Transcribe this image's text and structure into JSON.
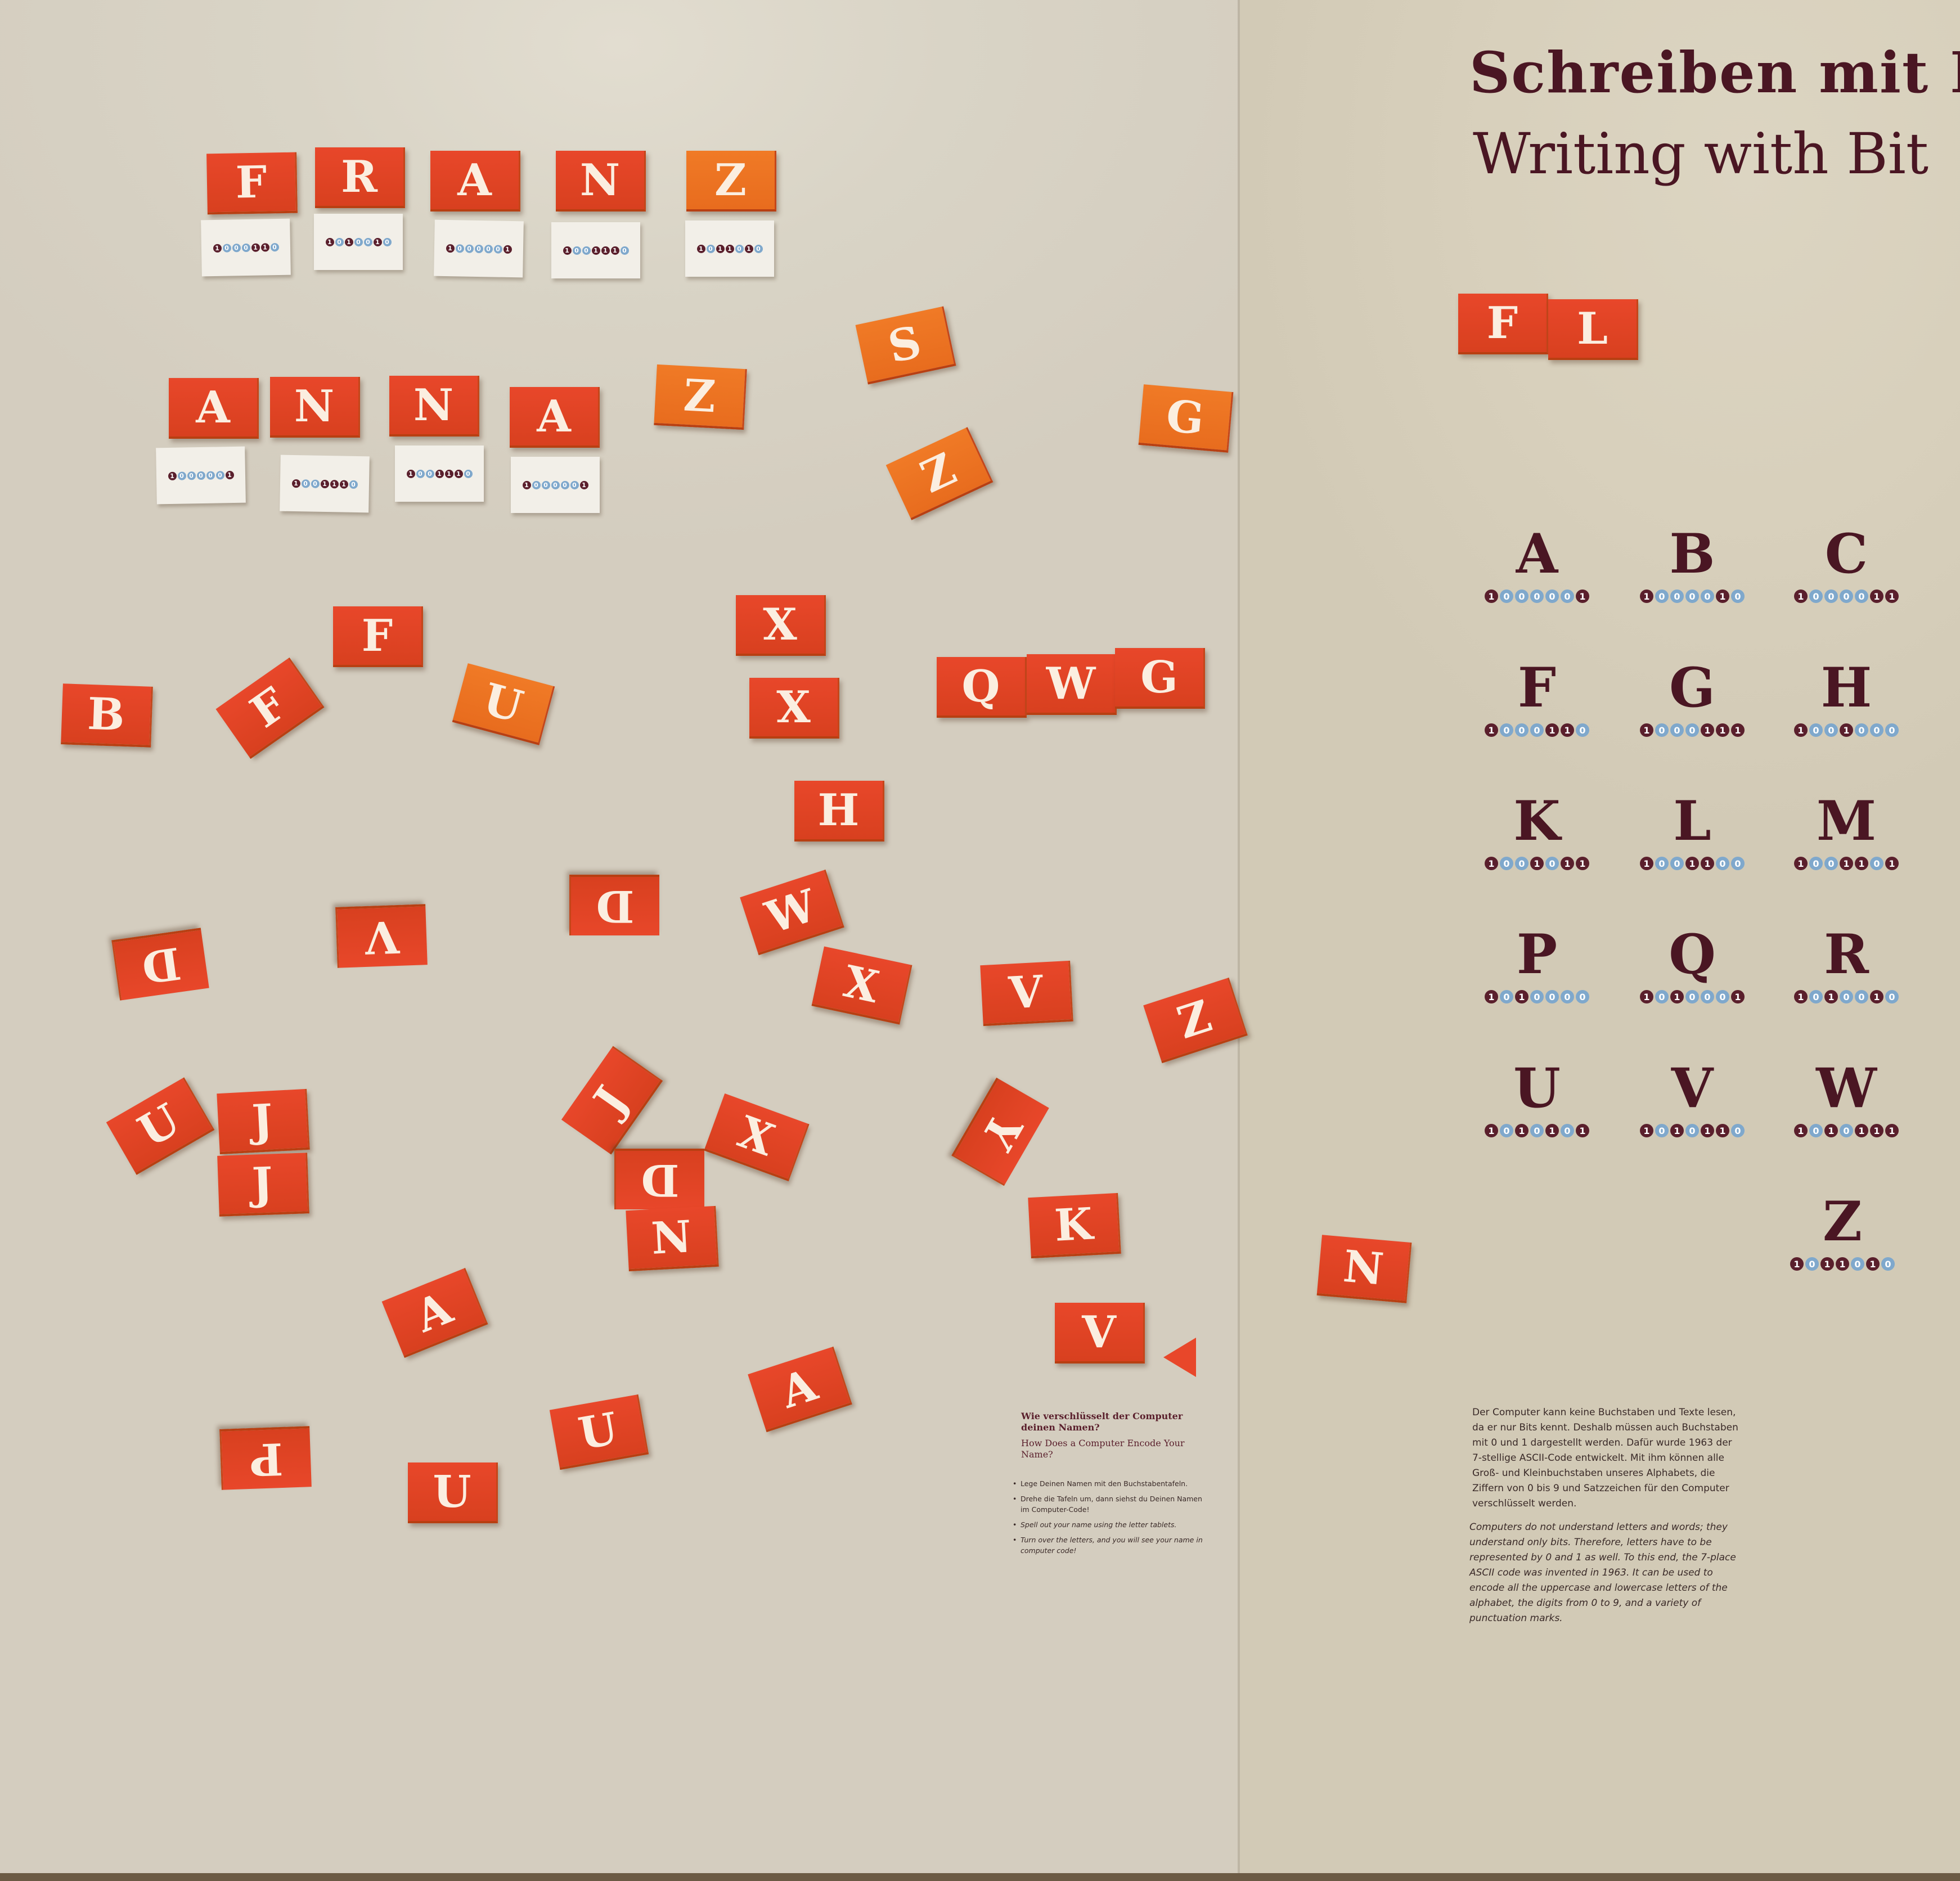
{
  "title_de": "Schreiben mit B",
  "title_en": "Writing with Bit",
  "name_rows": [
    {
      "name": "FRANZ",
      "letters": [
        {
          "char": "F",
          "bits": "1000110"
        },
        {
          "char": "R",
          "bits": "1010010"
        },
        {
          "char": "A",
          "bits": "1000001"
        },
        {
          "char": "N",
          "bits": "1001110"
        },
        {
          "char": "Z",
          "bits": "1011010"
        }
      ]
    },
    {
      "name": "ANNA",
      "letters": [
        {
          "char": "A",
          "bits": "1000001"
        },
        {
          "char": "N",
          "bits": "1001110"
        },
        {
          "char": "N",
          "bits": "1001110"
        },
        {
          "char": "A",
          "bits": "1000001"
        }
      ]
    }
  ],
  "loose_tiles": [
    "Z",
    "S",
    "Z",
    "G",
    "F",
    "B",
    "F",
    "U",
    "X",
    "X",
    "Q",
    "W",
    "G",
    "H",
    "D",
    "V",
    "D",
    "W",
    "X",
    "V",
    "Z",
    "U",
    "J",
    "J",
    "J",
    "X",
    "Y",
    "D",
    "N",
    "K",
    "N",
    "A",
    "V",
    "A",
    "U",
    "P",
    "U"
  ],
  "right_tiles": [
    "F",
    "L"
  ],
  "alphabet": [
    {
      "char": "A",
      "bits": "1000001"
    },
    {
      "char": "B",
      "bits": "1000010"
    },
    {
      "char": "C",
      "bits": "1000011"
    },
    {
      "char": "F",
      "bits": "1000110"
    },
    {
      "char": "G",
      "bits": "1000111"
    },
    {
      "char": "H",
      "bits": "1001000"
    },
    {
      "char": "K",
      "bits": "1001011"
    },
    {
      "char": "L",
      "bits": "1001100"
    },
    {
      "char": "M",
      "bits": "1001101"
    },
    {
      "char": "P",
      "bits": "1010000"
    },
    {
      "char": "Q",
      "bits": "1010001"
    },
    {
      "char": "R",
      "bits": "1010010"
    },
    {
      "char": "U",
      "bits": "1010101"
    },
    {
      "char": "V",
      "bits": "1010110"
    },
    {
      "char": "W",
      "bits": "1010111"
    },
    {
      "char": "Z",
      "bits": "1011010"
    }
  ],
  "info": {
    "title": "Wie verschlüsselt der Computer deinen Namen?",
    "subtitle": "How Does a Computer Encode Your Name?",
    "steps": [
      "Lege Deinen Namen mit den Buchstabentafeln.",
      "Drehe die Tafeln um, dann siehst du Deinen Namen im Computer-Code!",
      "Spell out your name using the letter tablets.",
      "Turn over the letters, and you will see your name in computer code!"
    ]
  },
  "body_de": "Der Computer kann keine Buchstaben und Texte lesen, da er nur Bits kennt. Deshalb müssen auch Buchstaben mit 0 und 1 dargestellt werden. Dafür wurde 1963 der 7-stellige ASCII-Code entwickelt. Mit ihm können alle Groß- und Kleinbuchstaben unseres Alphabets, die Ziffern von 0 bis 9 und Satzzeichen für den Computer verschlüsselt werden.",
  "body_en": "Computers do not understand letters and words; they understand only bits. Therefore, letters have to be represented by 0 and 1 as well. To this end, the 7-place ASCII code was invented in 1963. It can be used to encode all the uppercase and lowercase letters of the alphabet, the digits from 0 to 9, and a variety of punctuation marks.",
  "colors": {
    "tile": "#e4501c",
    "maroon": "#4a1623",
    "bit_one": "#5a1f2c",
    "bit_zero": "#7fa8cc"
  }
}
